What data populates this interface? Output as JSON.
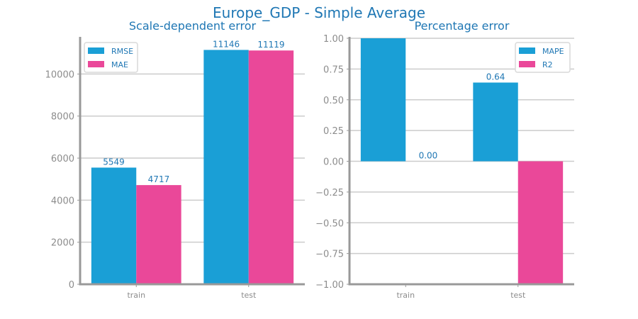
{
  "suptitle": "Europe_GDP - Simple Average",
  "colors": {
    "series1": "#1a9fd6",
    "series2": "#ea4899",
    "axis": "#999999",
    "grid": "#cccccc",
    "text": "#1f77b4",
    "tick": "#8c8c8c"
  },
  "chart_data": [
    {
      "type": "bar",
      "title": "Scale-dependent error",
      "categories": [
        "train",
        "test"
      ],
      "series": [
        {
          "name": "RMSE",
          "values": [
            5549,
            11146
          ]
        },
        {
          "name": "MAE",
          "values": [
            4717,
            11119
          ]
        }
      ],
      "data_labels": [
        [
          "5549",
          "11146"
        ],
        [
          "4717",
          "11119"
        ]
      ],
      "ylim": [
        0,
        11700
      ],
      "yticks": [
        0,
        2000,
        4000,
        6000,
        8000,
        10000
      ],
      "ytick_labels": [
        "0",
        "2000",
        "4000",
        "6000",
        "8000",
        "10000"
      ],
      "grid": true,
      "legend": "top-left"
    },
    {
      "type": "bar",
      "title": "Percentage error",
      "categories": [
        "train",
        "test"
      ],
      "series": [
        {
          "name": "MAPE",
          "values": [
            1.0,
            0.64
          ]
        },
        {
          "name": "R2",
          "values": [
            0.0,
            -1.0
          ]
        }
      ],
      "data_labels": [
        [
          "",
          "0.64"
        ],
        [
          "0.00",
          ""
        ]
      ],
      "ylim": [
        -1.0,
        1.0
      ],
      "yticks": [
        -1.0,
        -0.75,
        -0.5,
        -0.25,
        0.0,
        0.25,
        0.5,
        0.75,
        1.0
      ],
      "ytick_labels": [
        "−1.00",
        "−0.75",
        "−0.50",
        "−0.25",
        "0.00",
        "0.25",
        "0.50",
        "0.75",
        "1.00"
      ],
      "grid": true,
      "legend": "top-right"
    }
  ]
}
